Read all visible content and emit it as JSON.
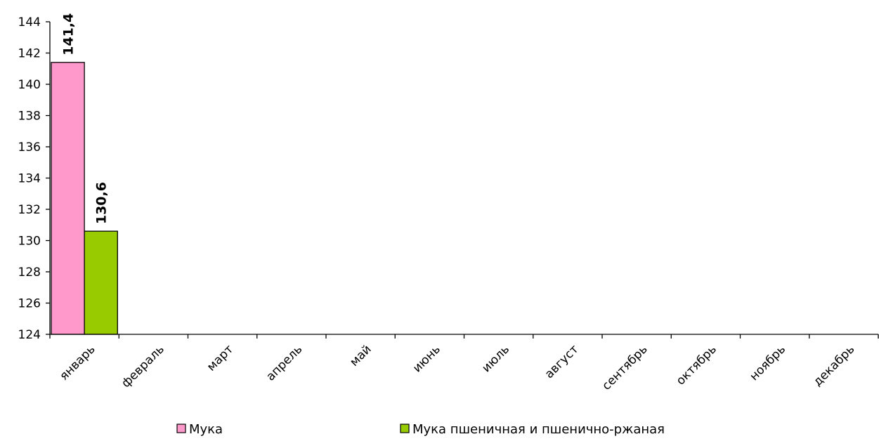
{
  "chart_data": {
    "type": "bar",
    "categories": [
      "январь",
      "февраль",
      "март",
      "апрель",
      "май",
      "июнь",
      "июль",
      "август",
      "сентябрь",
      "октябрь",
      "ноябрь",
      "декабрь"
    ],
    "series": [
      {
        "name": "Мука",
        "color": "#ff99cc",
        "values": [
          141.4,
          null,
          null,
          null,
          null,
          null,
          null,
          null,
          null,
          null,
          null,
          null
        ],
        "labels": [
          "141,4",
          "",
          "",
          "",
          "",
          "",
          "",
          "",
          "",
          "",
          "",
          ""
        ]
      },
      {
        "name": "Мука пшеничная и пшенично-ржаная",
        "color": "#99cc00",
        "values": [
          130.6,
          null,
          null,
          null,
          null,
          null,
          null,
          null,
          null,
          null,
          null,
          null
        ],
        "labels": [
          "130,6",
          "",
          "",
          "",
          "",
          "",
          "",
          "",
          "",
          "",
          "",
          ""
        ]
      }
    ],
    "ylim": [
      124,
      144
    ],
    "yticks": [
      124,
      126,
      128,
      130,
      132,
      134,
      136,
      138,
      140,
      142,
      144
    ],
    "title": "",
    "xlabel": "",
    "ylabel": "",
    "grid": false,
    "legend_position": "bottom"
  }
}
